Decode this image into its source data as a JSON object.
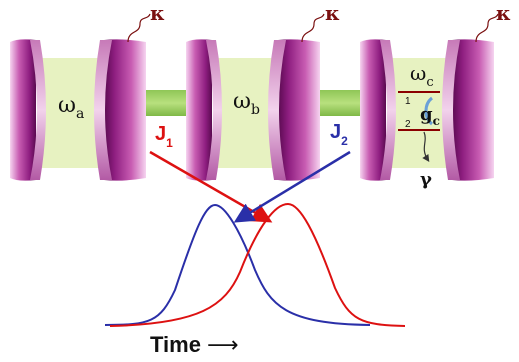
{
  "colors": {
    "mirror_dark": "#6b0d60",
    "mirror_mid": "#b8469f",
    "mirror_light": "#f4c6ec",
    "mode_fill": "#e7f2c1",
    "coupler_fill": "#a9d772",
    "kappa_color": "#7a1010",
    "pulse_red": "#dd1111",
    "pulse_blue": "#2a2fa8",
    "level_line": "#8b0000"
  },
  "labels": {
    "kappa_1": "κ",
    "kappa_2": "κ",
    "kappa_3": "κ",
    "omega_a_base": "ω",
    "omega_a_sub": "a",
    "omega_b_base": "ω",
    "omega_b_sub": "b",
    "omega_c_base": "ω",
    "omega_c_sub": "c",
    "g_c_base": "g",
    "g_c_sub": "c",
    "level_1": "1",
    "level_2": "2",
    "gamma": "γ",
    "J1_base": "J",
    "J1_sub": "1",
    "J2_base": "J",
    "J2_sub": "2",
    "time_label": "Time",
    "time_arrow": "⟶"
  }
}
